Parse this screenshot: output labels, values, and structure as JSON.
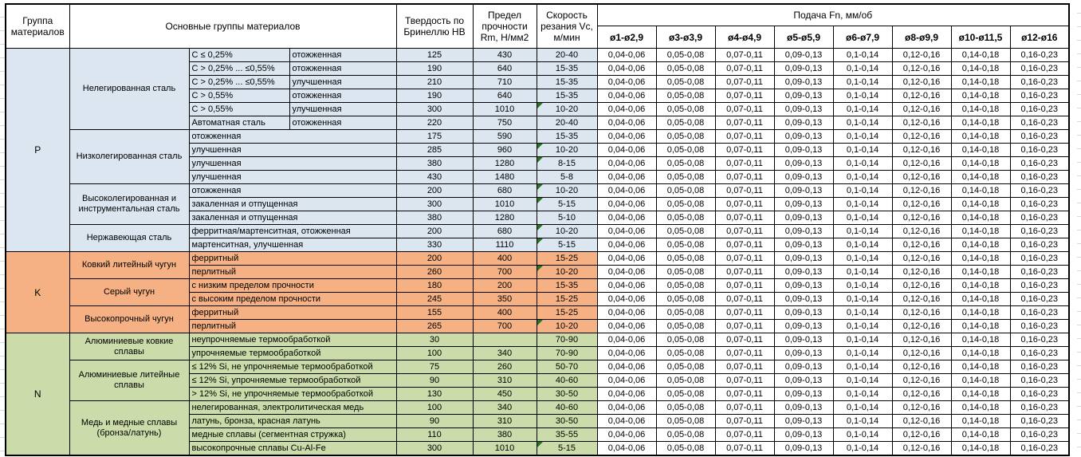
{
  "header": {
    "col_group": "Группа материалов",
    "col_main_groups": "Основные группы материалов",
    "col_hardness": "Твердость по Бринеллю HB",
    "col_strength": "Предел прочности Rm, Н/мм2",
    "col_speed": "Скорость резания Vc, м/мин",
    "feed_title": "Подача Fn, мм/об",
    "feed_columns": [
      "ø1-ø2,9",
      "ø3-ø3,9",
      "ø4-ø4,9",
      "ø5-ø5,9",
      "ø6-ø7,9",
      "ø8-ø9,9",
      "ø10-ø11,5",
      "ø12-ø16"
    ]
  },
  "feed_values": [
    "0,04-0,06",
    "0,05-0,08",
    "0,07-0,11",
    "0,09-0,13",
    "0,1-0,14",
    "0,12-0,16",
    "0,14-0,18",
    "0,16-0,23"
  ],
  "colors": {
    "section_p": "#DCE6F1",
    "section_k": "#F5B183",
    "section_n": "#CBDBA9",
    "note_marker": "#267326",
    "grid_faint": "#d8d8d8"
  },
  "sections": [
    {
      "group": "P",
      "color_key": "section_p",
      "subgroups": [
        {
          "name": "Нелегированная сталь",
          "rows": [
            {
              "desc1": "C ≤ 0,25%",
              "desc2": "отожженная",
              "hb": "125",
              "rm": "430",
              "vc": "20-40",
              "note": false
            },
            {
              "desc1": "C > 0,25% ... ≤0,55%",
              "desc2": "отожженная",
              "hb": "190",
              "rm": "640",
              "vc": "15-35",
              "note": false
            },
            {
              "desc1": "C > 0,25% ... ≤0,55%",
              "desc2": "улучшенная",
              "hb": "210",
              "rm": "710",
              "vc": "15-35",
              "note": false
            },
            {
              "desc1": "C > 0,55%",
              "desc2": "отожженная",
              "hb": "190",
              "rm": "640",
              "vc": "15-35",
              "note": false
            },
            {
              "desc1": "C > 0,55%",
              "desc2": "улучшенная",
              "hb": "300",
              "rm": "1010",
              "vc": "10-20",
              "note": true
            },
            {
              "desc1": "Автоматная сталь",
              "desc2": "отожженная",
              "hb": "220",
              "rm": "750",
              "vc": "20-40",
              "note": false
            }
          ]
        },
        {
          "name": "Низколегированная сталь",
          "rows": [
            {
              "desc": "отожженная",
              "hb": "175",
              "rm": "590",
              "vc": "15-35",
              "note": false
            },
            {
              "desc": "улучшенная",
              "hb": "285",
              "rm": "960",
              "vc": "10-20",
              "note": true
            },
            {
              "desc": "улучшенная",
              "hb": "380",
              "rm": "1280",
              "vc": "8-15",
              "note": true
            },
            {
              "desc": "улучшенная",
              "hb": "430",
              "rm": "1480",
              "vc": "5-8",
              "note": false
            }
          ]
        },
        {
          "name": "Высоколегированная и инструментальная сталь",
          "rows": [
            {
              "desc": "отожженная",
              "hb": "200",
              "rm": "680",
              "vc": "10-20",
              "note": true
            },
            {
              "desc": "закаленная и отпущенная",
              "hb": "300",
              "rm": "1010",
              "vc": "5-15",
              "note": true
            },
            {
              "desc": "закаленная и отпущенная",
              "hb": "380",
              "rm": "1280",
              "vc": "5-10",
              "note": false
            }
          ]
        },
        {
          "name": "Нержавеющая сталь",
          "rows": [
            {
              "desc": "ферритная/мартенситная, отожженная",
              "hb": "200",
              "rm": "680",
              "vc": "10-20",
              "note": true
            },
            {
              "desc": "мартенситная, улучшенная",
              "hb": "330",
              "rm": "1110",
              "vc": "5-15",
              "note": true
            }
          ]
        }
      ]
    },
    {
      "group": "K",
      "color_key": "section_k",
      "subgroups": [
        {
          "name": "Ковкий литейный чугун",
          "rows": [
            {
              "desc": "ферритный",
              "hb": "200",
              "rm": "400",
              "vc": "15-25",
              "note": false
            },
            {
              "desc": "перлитный",
              "hb": "260",
              "rm": "700",
              "vc": "10-20",
              "note": true
            }
          ]
        },
        {
          "name": "Серый чугун",
          "rows": [
            {
              "desc": "с низким пределом прочности",
              "hb": "180",
              "rm": "200",
              "vc": "15-35",
              "note": false
            },
            {
              "desc": "с высоким пределом прочности",
              "hb": "245",
              "rm": "350",
              "vc": "15-25",
              "note": false
            }
          ]
        },
        {
          "name": "Высокопрочный чугун",
          "rows": [
            {
              "desc": "ферритный",
              "hb": "155",
              "rm": "400",
              "vc": "15-25",
              "note": false
            },
            {
              "desc": "перлитный",
              "hb": "265",
              "rm": "700",
              "vc": "10-20",
              "note": true
            }
          ]
        }
      ]
    },
    {
      "group": "N",
      "color_key": "section_n",
      "subgroups": [
        {
          "name": "Алюминиевые ковкие сплавы",
          "rows": [
            {
              "desc": "неупрочняемые термообработкой",
              "hb": "30",
              "rm": "",
              "vc": "70-90",
              "note": false
            },
            {
              "desc": "упрочняемые термообработкой",
              "hb": "100",
              "rm": "340",
              "vc": "70-90",
              "note": false
            }
          ]
        },
        {
          "name": "Алюминиевые литейные сплавы",
          "rows": [
            {
              "desc": "≤ 12% Si, не упрочняемые термообработкой",
              "hb": "75",
              "rm": "260",
              "vc": "50-70",
              "note": false
            },
            {
              "desc": "≤ 12% Si, упрочняемые термообработкой",
              "hb": "90",
              "rm": "310",
              "vc": "40-60",
              "note": false
            },
            {
              "desc": "> 12% Si, не упрочняемые термообработкой",
              "hb": "130",
              "rm": "450",
              "vc": "30-50",
              "note": false
            }
          ]
        },
        {
          "name": "Медь и медные сплавы (бронза/латунь)",
          "rows": [
            {
              "desc": "нелегированная, электролитическая медь",
              "hb": "100",
              "rm": "340",
              "vc": "40-60",
              "note": false
            },
            {
              "desc": "латунь, бронза, красная латунь",
              "hb": "90",
              "rm": "310",
              "vc": "30-50",
              "note": false
            },
            {
              "desc": "медные сплавы (сегментная стружка)",
              "hb": "110",
              "rm": "380",
              "vc": "35-55",
              "note": false
            },
            {
              "desc": "высокопрочные сплавы Cu-Al-Fe",
              "hb": "300",
              "rm": "1010",
              "vc": "5-15",
              "note": true
            }
          ]
        }
      ]
    }
  ]
}
